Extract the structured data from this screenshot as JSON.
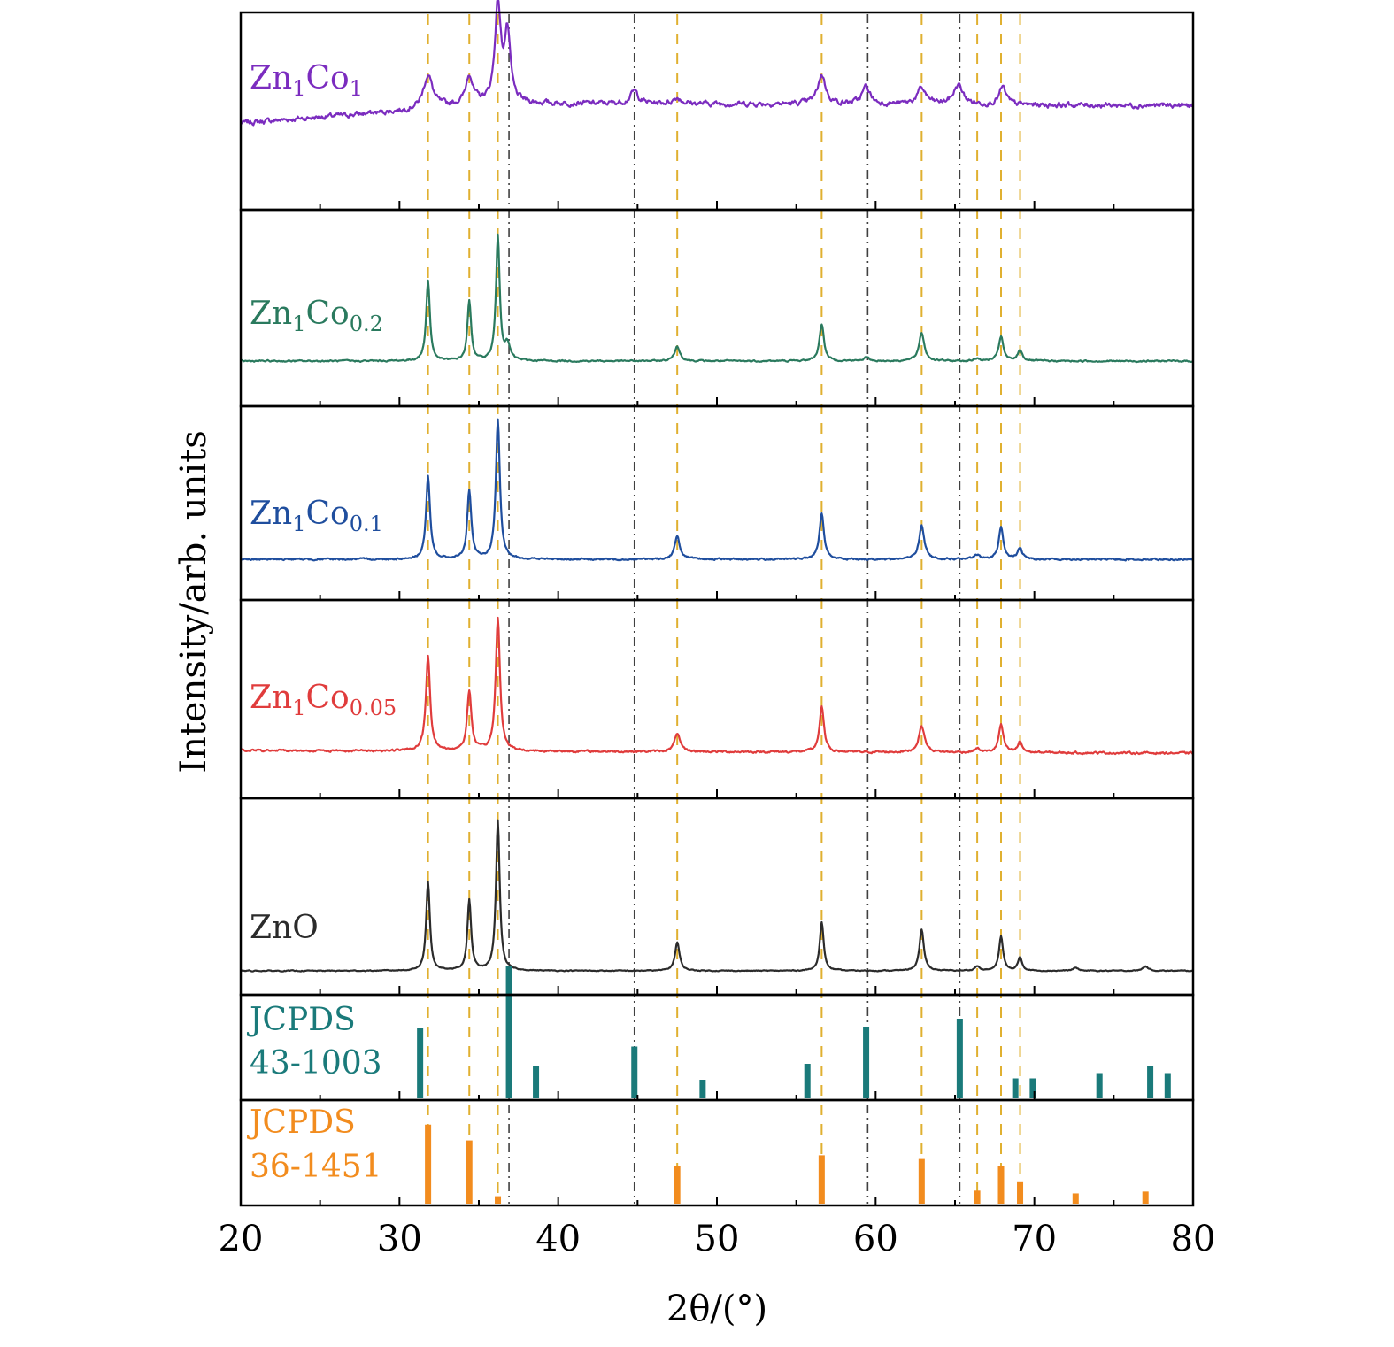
{
  "chart_data": {
    "type": "line",
    "xlabel": "2θ/(°)",
    "ylabel": "Intensity/arb. units",
    "xlim": [
      20,
      80
    ],
    "xticks": [
      20,
      30,
      40,
      50,
      60,
      70,
      80
    ],
    "colors": {
      "Zn1Co1": "#7b2cbf",
      "Zn1Co0.2": "#2a7a5e",
      "Zn1Co0.1": "#1f4e9e",
      "Zn1Co0.05": "#e03c3c",
      "ZnO": "#2b2b2b",
      "ref_43_1003": "#1a7a7a",
      "ref_36_1451": "#f28c1e",
      "guide_36_1451": "#e0b030",
      "guide_43_1003": "#404040"
    },
    "series": [
      {
        "key": "Zn1Co1",
        "label_main": "Zn",
        "label_parts": [
          [
            "Zn",
            ""
          ],
          [
            "1",
            "sub"
          ],
          [
            "Co",
            ""
          ],
          [
            "1",
            "sub"
          ]
        ],
        "baseline": [
          [
            20,
            0.1
          ],
          [
            30,
            0.22
          ],
          [
            35,
            0.3
          ],
          [
            45,
            0.3
          ],
          [
            80,
            0.28
          ]
        ],
        "noise": 0.05,
        "peaks": [
          [
            31.8,
            0.34,
            0.35
          ],
          [
            34.4,
            0.3,
            0.25
          ],
          [
            36.2,
            1.0,
            0.22
          ],
          [
            36.8,
            0.7,
            0.22
          ],
          [
            44.8,
            0.13,
            0.3
          ],
          [
            47.5,
            0.06,
            0.3
          ],
          [
            56.6,
            0.3,
            0.3
          ],
          [
            59.4,
            0.18,
            0.3
          ],
          [
            62.9,
            0.16,
            0.35
          ],
          [
            65.2,
            0.2,
            0.35
          ],
          [
            68.0,
            0.18,
            0.25
          ]
        ]
      },
      {
        "key": "Zn1Co0.2",
        "label_parts": [
          [
            "Zn",
            ""
          ],
          [
            "1",
            "sub"
          ],
          [
            "Co",
            ""
          ],
          [
            "0.2",
            "sub"
          ]
        ],
        "baseline": [
          [
            20,
            0.0
          ],
          [
            80,
            0.0
          ]
        ],
        "noise": 0.012,
        "peaks": [
          [
            31.8,
            0.65,
            0.14
          ],
          [
            34.4,
            0.48,
            0.14
          ],
          [
            36.2,
            1.0,
            0.14
          ],
          [
            36.8,
            0.12,
            0.2
          ],
          [
            47.5,
            0.12,
            0.2
          ],
          [
            56.6,
            0.3,
            0.17
          ],
          [
            59.4,
            0.03,
            0.2
          ],
          [
            62.9,
            0.23,
            0.2
          ],
          [
            66.4,
            0.02,
            0.2
          ],
          [
            67.9,
            0.2,
            0.17
          ],
          [
            69.1,
            0.09,
            0.17
          ]
        ]
      },
      {
        "key": "Zn1Co0.1",
        "label_parts": [
          [
            "Zn",
            ""
          ],
          [
            "1",
            "sub"
          ],
          [
            "Co",
            ""
          ],
          [
            "0.1",
            "sub"
          ]
        ],
        "baseline": [
          [
            20,
            0.0
          ],
          [
            80,
            0.0
          ]
        ],
        "noise": 0.012,
        "peaks": [
          [
            31.8,
            0.59,
            0.15
          ],
          [
            34.4,
            0.49,
            0.15
          ],
          [
            36.2,
            1.0,
            0.15
          ],
          [
            47.5,
            0.16,
            0.2
          ],
          [
            56.6,
            0.33,
            0.17
          ],
          [
            62.9,
            0.24,
            0.2
          ],
          [
            66.4,
            0.03,
            0.2
          ],
          [
            67.9,
            0.23,
            0.17
          ],
          [
            69.1,
            0.08,
            0.17
          ]
        ]
      },
      {
        "key": "Zn1Co0.05",
        "label_parts": [
          [
            "Zn",
            ""
          ],
          [
            "1",
            "sub"
          ],
          [
            "Co",
            ""
          ],
          [
            "0.05",
            "sub"
          ]
        ],
        "baseline": [
          [
            20,
            0.0
          ],
          [
            80,
            -0.02
          ]
        ],
        "noise": 0.015,
        "peaks": [
          [
            31.8,
            0.71,
            0.16
          ],
          [
            34.4,
            0.45,
            0.16
          ],
          [
            36.2,
            1.0,
            0.16
          ],
          [
            47.5,
            0.14,
            0.2
          ],
          [
            56.6,
            0.34,
            0.17
          ],
          [
            62.9,
            0.2,
            0.22
          ],
          [
            66.4,
            0.03,
            0.2
          ],
          [
            67.9,
            0.21,
            0.17
          ],
          [
            69.1,
            0.08,
            0.17
          ]
        ]
      },
      {
        "key": "ZnO",
        "label_parts": [
          [
            "ZnO",
            ""
          ]
        ],
        "baseline": [
          [
            20,
            0.0
          ],
          [
            80,
            0.0
          ]
        ],
        "noise": 0.006,
        "peaks": [
          [
            31.8,
            0.59,
            0.14
          ],
          [
            34.4,
            0.47,
            0.14
          ],
          [
            36.2,
            1.0,
            0.14
          ],
          [
            47.5,
            0.19,
            0.17
          ],
          [
            56.6,
            0.32,
            0.15
          ],
          [
            62.9,
            0.27,
            0.17
          ],
          [
            66.4,
            0.03,
            0.17
          ],
          [
            67.9,
            0.23,
            0.15
          ],
          [
            69.1,
            0.09,
            0.15
          ],
          [
            72.6,
            0.02,
            0.2
          ],
          [
            77.0,
            0.03,
            0.2
          ]
        ]
      }
    ],
    "references": [
      {
        "key": "ref_43_1003",
        "label_lines": [
          "JCPDS",
          "43-1003"
        ],
        "sticks": [
          [
            31.3,
            0.53
          ],
          [
            36.9,
            1.0
          ],
          [
            38.6,
            0.24
          ],
          [
            44.8,
            0.39
          ],
          [
            49.1,
            0.14
          ],
          [
            55.7,
            0.26
          ],
          [
            59.4,
            0.54
          ],
          [
            65.3,
            0.6
          ],
          [
            68.8,
            0.15
          ],
          [
            69.9,
            0.15
          ],
          [
            74.1,
            0.19
          ],
          [
            77.3,
            0.24
          ],
          [
            78.4,
            0.19
          ]
        ]
      },
      {
        "key": "ref_36_1451",
        "label_lines": [
          "JCPDS",
          "36-1451"
        ],
        "sticks": [
          [
            31.8,
            0.85
          ],
          [
            34.4,
            0.68
          ],
          [
            36.2,
            0.08
          ],
          [
            47.5,
            0.4
          ],
          [
            56.6,
            0.52
          ],
          [
            62.9,
            0.48
          ],
          [
            66.4,
            0.14
          ],
          [
            67.9,
            0.4
          ],
          [
            69.1,
            0.24
          ],
          [
            72.6,
            0.11
          ],
          [
            77.0,
            0.13
          ]
        ]
      }
    ],
    "guide_lines_36_1451": [
      31.8,
      34.4,
      36.2,
      47.5,
      56.6,
      62.9,
      66.4,
      67.9,
      69.1
    ],
    "guide_lines_43_1003": [
      36.9,
      44.8,
      59.5,
      65.3
    ]
  }
}
